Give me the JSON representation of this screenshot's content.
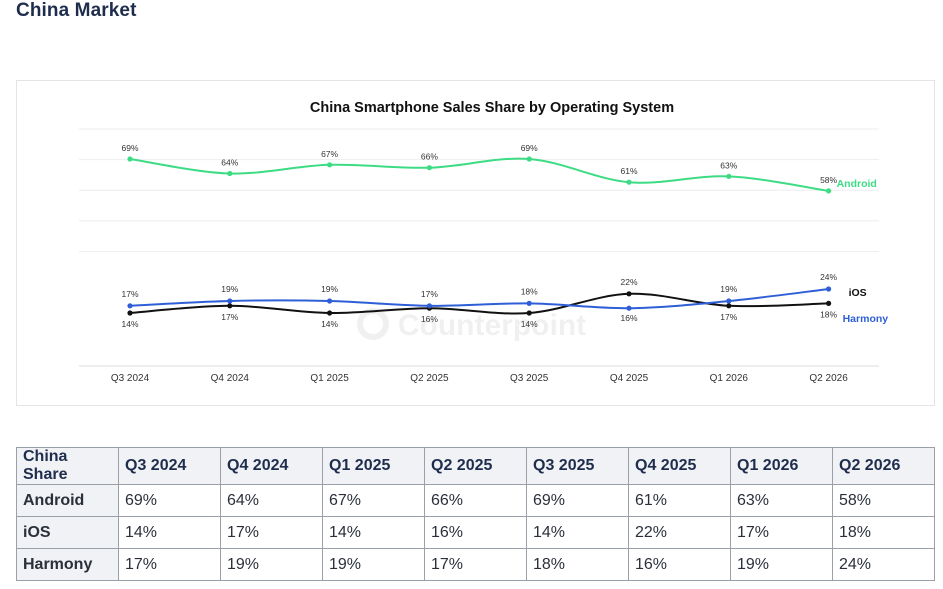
{
  "page": {
    "title": "China Market"
  },
  "chart_data": {
    "type": "line",
    "title": "China Smartphone Sales Share by Operating System",
    "categories": [
      "Q3 2024",
      "Q4 2024",
      "Q1 2025",
      "Q2 2025",
      "Q3 2025",
      "Q4 2025",
      "Q1 2026",
      "Q2 2026"
    ],
    "series": [
      {
        "name": "Android",
        "values": [
          69,
          64,
          67,
          66,
          69,
          61,
          63,
          58
        ],
        "color": "#3ddc84"
      },
      {
        "name": "iOS",
        "values": [
          14,
          17,
          14,
          16,
          14,
          22,
          17,
          18
        ],
        "color": "#111111"
      },
      {
        "name": "Harmony",
        "values": [
          17,
          19,
          19,
          17,
          18,
          16,
          19,
          24
        ],
        "color": "#2f5fd6"
      }
    ],
    "value_suffix": "%",
    "watermark": "Counterpoint",
    "grid": true,
    "legend": "inline-right"
  },
  "table": {
    "headers": [
      "China Share",
      "Q3 2024",
      "Q4 2024",
      "Q1 2025",
      "Q2 2025",
      "Q3 2025",
      "Q4 2025",
      "Q1 2026",
      "Q2 2026"
    ],
    "rows": [
      [
        "Android",
        "69%",
        "64%",
        "67%",
        "66%",
        "69%",
        "61%",
        "63%",
        "58%"
      ],
      [
        "iOS",
        "14%",
        "17%",
        "14%",
        "16%",
        "14%",
        "22%",
        "17%",
        "18%"
      ],
      [
        "Harmony",
        "17%",
        "19%",
        "19%",
        "17%",
        "18%",
        "16%",
        "19%",
        "24%"
      ]
    ]
  }
}
